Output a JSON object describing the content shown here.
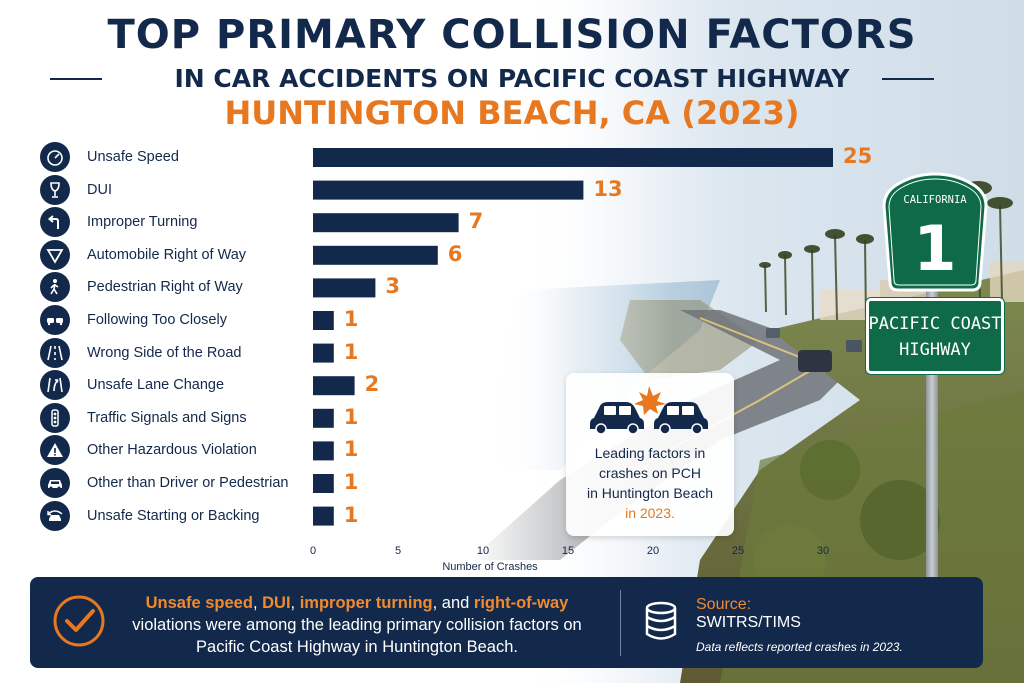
{
  "title": {
    "line1": "TOP PRIMARY COLLISION FACTORS",
    "line2": "IN CAR ACCIDENTS ON PACIFIC COAST HIGHWAY",
    "line3": "HUNTINGTON BEACH, CA (2023)"
  },
  "colors": {
    "navy": "#13294b",
    "orange": "#e8781f",
    "sign_green": "#0f6b47"
  },
  "chart_data": {
    "type": "bar",
    "orientation": "horizontal",
    "categories": [
      "Unsafe Speed",
      "DUI",
      "Improper Turning",
      "Automobile Right of Way",
      "Pedestrian Right of Way",
      "Following Too Closely",
      "Wrong Side of the Road",
      "Unsafe Lane Change",
      "Traffic Signals and Signs",
      "Other Hazardous Violation",
      "Other than Driver or Pedestrian",
      "Unsafe Starting or Backing"
    ],
    "icons": [
      "speedometer-icon",
      "wine-glass-icon",
      "turn-arrow-icon",
      "yield-icon",
      "pedestrian-icon",
      "two-cars-icon",
      "road-icon",
      "lane-change-icon",
      "traffic-light-icon",
      "warning-icon",
      "car-icon",
      "reverse-car-icon"
    ],
    "values": [
      25,
      13,
      7,
      6,
      3,
      1,
      1,
      2,
      1,
      1,
      1,
      1
    ],
    "xlabel": "Number of Crashes",
    "xticks": [
      "0",
      "5",
      "10",
      "15",
      "20",
      "25",
      "30"
    ],
    "xlim": [
      0,
      30
    ],
    "grid": false,
    "legend": "none"
  },
  "callout": {
    "line1": "Leading factors in",
    "line2": "crashes on PCH",
    "line3": "in Huntington Beach",
    "line4": "in 2023."
  },
  "sign": {
    "state": "CALIFORNIA",
    "route": "1",
    "name_line1": "PACIFIC COAST",
    "name_line2": "HIGHWAY"
  },
  "banner": {
    "hl1": "Unsafe speed",
    "sep1": ", ",
    "hl2": "DUI",
    "sep2": ", ",
    "hl3": "improper turning",
    "sep3": ", and ",
    "hl4": "right-of-way",
    "rest": " violations were among the leading primary collision factors on Pacific Coast Highway in Huntington Beach.",
    "source_title": "Source:",
    "source_name": "SWITRS/TIMS",
    "source_note": "Data reflects reported crashes in 2023."
  }
}
